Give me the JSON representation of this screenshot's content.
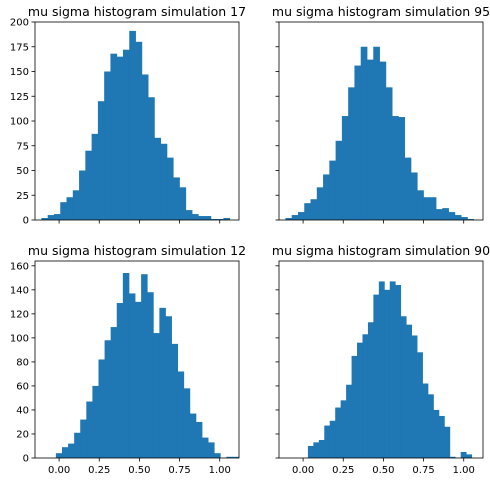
{
  "chart_data": [
    {
      "type": "bar",
      "title": "mu sigma histogram simulation 17",
      "xlim": [
        -0.15,
        1.12
      ],
      "ylim": [
        0,
        200
      ],
      "xticks": [
        0.0,
        0.25,
        0.5,
        0.75,
        1.0
      ],
      "xtick_labels_visible": false,
      "yticks": [
        0,
        25,
        50,
        75,
        100,
        125,
        150,
        175,
        200
      ],
      "ytick_labels_visible": true,
      "bins": {
        "start": -0.11,
        "width": 0.03906
      },
      "values": [
        2,
        5,
        6,
        18,
        23,
        30,
        50,
        70,
        87,
        120,
        150,
        168,
        165,
        172,
        191,
        180,
        147,
        124,
        83,
        77,
        63,
        43,
        33,
        10,
        6,
        4,
        4,
        1,
        1,
        2
      ]
    },
    {
      "type": "bar",
      "title": "mu sigma histogram simulation 95",
      "xlim": [
        -0.15,
        1.12
      ],
      "ylim": [
        0,
        200
      ],
      "xticks": [
        0.0,
        0.25,
        0.5,
        0.75,
        1.0
      ],
      "xtick_labels_visible": false,
      "yticks": [
        0,
        25,
        50,
        75,
        100,
        125,
        150,
        175,
        200
      ],
      "ytick_labels_visible": false,
      "bins": {
        "start": -0.11,
        "width": 0.03906
      },
      "values": [
        2,
        5,
        8,
        17,
        21,
        33,
        46,
        60,
        80,
        105,
        134,
        156,
        175,
        162,
        175,
        160,
        134,
        105,
        104,
        63,
        48,
        30,
        23,
        23,
        11,
        12,
        8,
        5,
        3,
        1
      ]
    },
    {
      "type": "bar",
      "title": "mu sigma histogram simulation 12",
      "xlim": [
        -0.15,
        1.12
      ],
      "ylim": [
        0,
        164
      ],
      "xticks": [
        0.0,
        0.25,
        0.5,
        0.75,
        1.0
      ],
      "xtick_labels": [
        "0.00",
        "0.25",
        "0.50",
        "0.75",
        "1.00"
      ],
      "yticks": [
        0,
        20,
        40,
        60,
        80,
        100,
        120,
        140,
        160
      ],
      "ytick_labels_visible": true,
      "bins": {
        "start": -0.02,
        "width": 0.0379
      },
      "values": [
        4,
        9,
        12,
        21,
        32,
        47,
        60,
        82,
        98,
        109,
        129,
        154,
        137,
        130,
        153,
        138,
        104,
        125,
        118,
        95,
        72,
        58,
        37,
        30,
        17,
        13,
        4,
        0,
        1,
        1
      ]
    },
    {
      "type": "bar",
      "title": "mu sigma histogram simulation 90",
      "xlim": [
        -0.15,
        1.12
      ],
      "ylim": [
        0,
        164
      ],
      "xticks": [
        0.0,
        0.25,
        0.5,
        0.75,
        1.0
      ],
      "xtick_labels": [
        "0.00",
        "0.25",
        "0.50",
        "0.75",
        "1.00"
      ],
      "yticks": [
        0,
        20,
        40,
        60,
        80,
        100,
        120,
        140,
        160
      ],
      "ytick_labels_visible": false,
      "bins": {
        "start": 0.03,
        "width": 0.03397
      },
      "values": [
        10,
        13,
        15,
        27,
        31,
        42,
        48,
        61,
        85,
        96,
        103,
        113,
        136,
        147,
        140,
        147,
        144,
        118,
        111,
        102,
        88,
        62,
        53,
        40,
        35,
        26,
        1,
        0,
        5,
        3
      ]
    }
  ]
}
